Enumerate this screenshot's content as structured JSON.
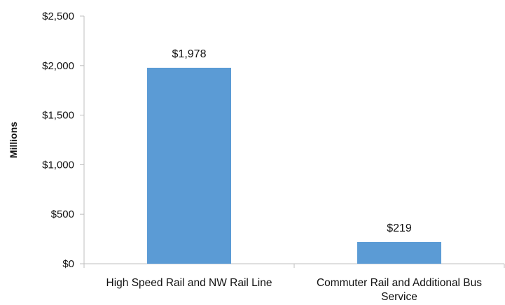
{
  "chart_data": {
    "type": "bar",
    "categories": [
      "High Speed Rail and NW Rail Line",
      "Commuter Rail and Additional Bus Service"
    ],
    "category_lines": [
      [
        "High Speed Rail and NW Rail Line"
      ],
      [
        "Commuter Rail and Additional Bus",
        "Service"
      ]
    ],
    "values": [
      1978,
      219
    ],
    "data_labels": [
      "$1,978",
      "$219"
    ],
    "title": "",
    "xlabel": "",
    "ylabel": "Millions",
    "ylim": [
      0,
      2500
    ],
    "yticks": [
      0,
      500,
      1000,
      1500,
      2000,
      2500
    ],
    "ytick_labels": [
      "$0",
      "$500",
      "$1,000",
      "$1,500",
      "$2,000",
      "$2,500"
    ],
    "grid": false,
    "legend": "none",
    "bar_color": "#5b9bd5",
    "axis_color": "#bfbfbf"
  }
}
